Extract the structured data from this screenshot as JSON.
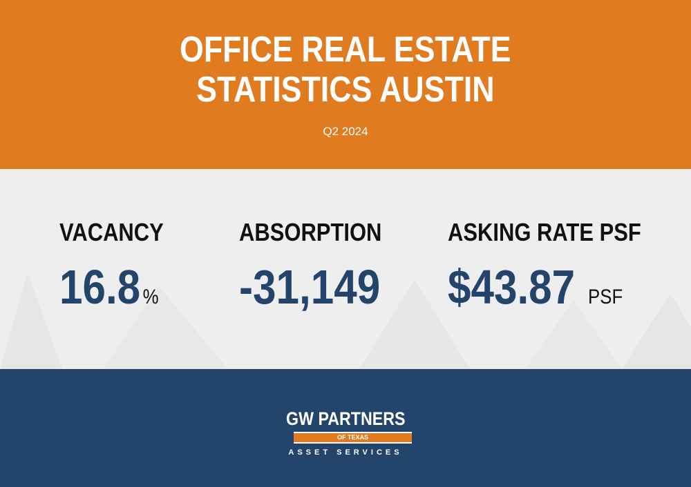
{
  "header": {
    "title_lines": [
      "OFFICE REAL ESTATE",
      "STATISTICS AUSTIN"
    ],
    "subtitle": "Q2 2024"
  },
  "stats": [
    {
      "label": "VACANCY",
      "value": "16.8",
      "unit": "%"
    },
    {
      "label": "ABSORPTION",
      "value": "-31,149"
    },
    {
      "label": "ASKING RATE PSF",
      "value": "$43.87",
      "unit": "PSF"
    }
  ],
  "logo": {
    "name": "GW PARTNERS",
    "tagline": "OF TEXAS",
    "services": "ASSET SERVICES"
  }
}
